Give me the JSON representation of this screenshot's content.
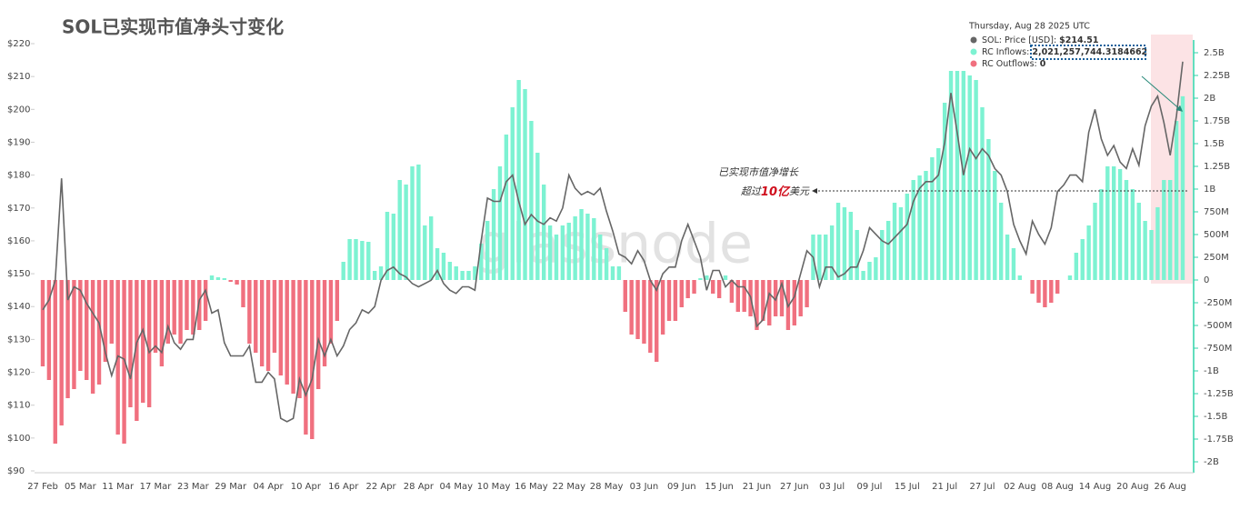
{
  "chart_data": {
    "type": "bar-line",
    "title": "SOL已实现市值净头寸变化",
    "watermark": "glassnode",
    "categories": [
      "27 Feb",
      null,
      null,
      null,
      null,
      null,
      "05 Mar",
      null,
      null,
      null,
      null,
      null,
      "11 Mar",
      null,
      null,
      null,
      null,
      null,
      "17 Mar",
      null,
      null,
      null,
      null,
      null,
      "23 Mar",
      null,
      null,
      null,
      null,
      null,
      "29 Mar",
      null,
      null,
      null,
      null,
      null,
      "04 Apr",
      null,
      null,
      null,
      null,
      null,
      "10 Apr",
      null,
      null,
      null,
      null,
      null,
      "16 Apr",
      null,
      null,
      null,
      null,
      null,
      "22 Apr",
      null,
      null,
      null,
      null,
      null,
      "28 Apr",
      null,
      null,
      null,
      null,
      null,
      "04 May",
      null,
      null,
      null,
      null,
      null,
      "10 May",
      null,
      null,
      null,
      null,
      null,
      "16 May",
      null,
      null,
      null,
      null,
      null,
      "22 May",
      null,
      null,
      null,
      null,
      null,
      "28 May",
      null,
      null,
      null,
      null,
      null,
      "03 Jun",
      null,
      null,
      null,
      null,
      null,
      "09 Jun",
      null,
      null,
      null,
      null,
      null,
      "15 Jun",
      null,
      null,
      null,
      null,
      null,
      "21 Jun",
      null,
      null,
      null,
      null,
      null,
      "27 Jun",
      null,
      null,
      null,
      null,
      null,
      "03 Jul",
      null,
      null,
      null,
      null,
      null,
      "09 Jul",
      null,
      null,
      null,
      null,
      null,
      "15 Jul",
      null,
      null,
      null,
      null,
      null,
      "21 Jul",
      null,
      null,
      null,
      null,
      null,
      "27 Jul",
      null,
      null,
      null,
      null,
      null,
      "02 Aug",
      null,
      null,
      null,
      null,
      null,
      "08 Aug",
      null,
      null,
      null,
      null,
      null,
      "14 Aug",
      null,
      null,
      null,
      null,
      null,
      "20 Aug",
      null,
      null,
      null,
      null,
      null,
      "26 Aug",
      null,
      null
    ],
    "series": [
      {
        "name": "SOL: Price [USD]",
        "type": "line",
        "color": "#666666",
        "values": [
          139,
          142,
          148,
          179,
          142,
          146,
          145,
          141,
          138,
          135,
          126,
          119,
          125,
          124,
          118,
          129,
          133,
          126,
          128,
          126,
          134,
          129,
          127,
          130,
          130,
          142,
          145,
          138,
          139,
          129,
          125,
          125,
          125,
          128,
          117,
          117,
          120,
          118,
          106,
          105,
          106,
          118,
          113,
          118,
          130,
          125,
          130,
          125,
          128,
          133,
          135,
          139,
          138,
          140,
          148,
          151,
          152,
          150,
          149,
          147,
          146,
          147,
          148,
          151,
          147,
          145,
          144,
          146,
          146,
          145,
          160,
          173,
          172,
          172,
          178,
          180,
          172,
          165,
          168,
          166,
          165,
          167,
          166,
          170,
          180,
          176,
          174,
          175,
          174,
          176,
          169,
          163,
          156,
          155,
          153,
          157,
          154,
          148,
          145,
          150,
          152,
          152,
          160,
          165,
          160,
          155,
          145,
          151,
          151,
          146,
          148,
          146,
          146,
          143,
          134,
          136,
          144,
          142,
          147,
          140,
          143,
          150,
          157,
          155,
          146,
          152,
          152,
          149,
          150,
          152,
          152,
          157,
          164,
          162,
          160,
          159,
          161,
          163,
          165,
          172,
          176,
          178,
          178,
          180,
          190,
          205,
          193,
          180,
          188,
          185,
          188,
          186,
          182,
          180,
          175,
          165,
          160,
          156,
          166,
          162,
          159,
          164,
          175,
          177,
          180,
          180,
          178,
          193,
          200,
          191,
          186,
          189,
          184,
          182,
          188,
          183,
          195,
          201,
          204,
          196,
          186,
          198,
          214.51
        ]
      },
      {
        "name": "RC Inflows",
        "type": "bar",
        "axis": "y2",
        "color": "#7df2d2",
        "values": [
          0,
          0,
          0,
          0,
          0,
          0,
          0,
          0,
          0,
          0,
          0,
          0,
          0,
          0,
          0,
          0,
          0,
          0,
          0,
          0,
          0,
          0,
          0,
          0,
          0,
          0,
          0,
          0.05,
          0.03,
          0.02,
          0,
          0,
          0,
          0,
          0,
          0,
          0,
          0,
          0,
          0,
          0,
          0,
          0,
          0,
          0,
          0,
          0,
          0,
          0.2,
          0.45,
          0.45,
          0.43,
          0.42,
          0.1,
          0.15,
          0.75,
          0.73,
          1.1,
          1.05,
          1.25,
          1.27,
          0.6,
          0.7,
          0.35,
          0.3,
          0.2,
          0.15,
          0.1,
          0.1,
          0.15,
          0.4,
          0.65,
          1.0,
          1.25,
          1.6,
          1.9,
          2.2,
          2.1,
          1.75,
          1.4,
          1.05,
          0.6,
          0.5,
          0.6,
          0.63,
          0.7,
          0.78,
          0.73,
          0.68,
          0.5,
          0.35,
          0.15,
          0.15,
          0,
          0,
          0,
          0,
          0,
          0,
          0,
          0,
          0,
          0,
          0,
          0,
          0.02,
          0.05,
          0,
          0,
          0.05,
          0,
          0,
          0,
          0,
          0,
          0,
          0,
          0,
          0,
          0,
          0,
          0,
          0,
          0.5,
          0.5,
          0.5,
          0.6,
          0.85,
          0.8,
          0.75,
          0.55,
          0.1,
          0.2,
          0.25,
          0.55,
          0.65,
          0.85,
          0.8,
          0.95,
          1.1,
          1.15,
          1.2,
          1.35,
          1.45,
          1.95,
          2.3,
          2.3,
          2.3,
          2.25,
          2.2,
          1.9,
          1.55,
          1.2,
          0.85,
          0.5,
          0.35,
          0.05,
          0,
          0,
          0,
          0,
          0,
          0,
          0,
          0.05,
          0.3,
          0.45,
          0.6,
          0.85,
          1.0,
          1.25,
          1.25,
          1.22,
          1.1,
          1.0,
          0.85,
          0.65,
          0.55,
          0.8,
          1.1,
          1.1,
          1.75,
          2.0212577443184663
        ]
      },
      {
        "name": "RC Outflows",
        "type": "bar",
        "axis": "y2",
        "color": "#f0707f",
        "values": [
          -0.95,
          -1.1,
          -1.8,
          -1.6,
          -1.3,
          -1.2,
          -1.0,
          -1.1,
          -1.25,
          -1.15,
          -0.9,
          -0.7,
          -1.7,
          -1.8,
          -1.4,
          -1.55,
          -1.35,
          -1.4,
          -0.8,
          -0.95,
          -0.7,
          -0.6,
          -0.7,
          -0.55,
          -0.6,
          -0.55,
          -0.45,
          0,
          0,
          0,
          -0.02,
          -0.05,
          -0.3,
          -0.7,
          -0.8,
          -0.95,
          -1.0,
          -0.8,
          -1.05,
          -1.15,
          -1.25,
          -1.3,
          -1.7,
          -1.75,
          -1.2,
          -0.95,
          -0.7,
          -0.45,
          0,
          0,
          0,
          0,
          0,
          0,
          0,
          0,
          0,
          0,
          0,
          0,
          0,
          0,
          0,
          0,
          0,
          0,
          0,
          0,
          0,
          0,
          0,
          0,
          0,
          0,
          0,
          0,
          0,
          0,
          0,
          0,
          0,
          0,
          0,
          0,
          0,
          0,
          0,
          0,
          0,
          0,
          0,
          0,
          0,
          -0.35,
          -0.6,
          -0.65,
          -0.7,
          -0.8,
          -0.9,
          -0.6,
          -0.45,
          -0.45,
          -0.3,
          -0.2,
          -0.15,
          0,
          0,
          -0.15,
          -0.2,
          0,
          -0.25,
          -0.35,
          -0.35,
          -0.4,
          -0.55,
          -0.45,
          -0.5,
          -0.4,
          -0.4,
          -0.55,
          -0.5,
          -0.4,
          -0.3,
          0,
          0,
          0,
          0,
          0,
          0,
          0,
          0,
          0,
          0,
          0,
          0,
          0,
          0,
          0,
          0,
          0,
          0,
          0,
          0,
          0,
          0,
          0,
          0,
          0,
          0,
          0,
          0,
          0,
          0,
          0,
          0,
          0,
          0,
          0,
          -0.15,
          -0.25,
          -0.3,
          -0.25,
          -0.15,
          0,
          0,
          0,
          0,
          0,
          0,
          0,
          0,
          0,
          0,
          0,
          0,
          0,
          0,
          0,
          0,
          0,
          0,
          0,
          0
        ]
      }
    ],
    "ylim": [
      90,
      220
    ],
    "yticks": [
      {
        "value": 90,
        "label": "$90"
      },
      {
        "value": 100,
        "label": "$100"
      },
      {
        "value": 110,
        "label": "$110"
      },
      {
        "value": 120,
        "label": "$120"
      },
      {
        "value": 130,
        "label": "$130"
      },
      {
        "value": 140,
        "label": "$140"
      },
      {
        "value": 150,
        "label": "$150"
      },
      {
        "value": 160,
        "label": "$160"
      },
      {
        "value": 170,
        "label": "$170"
      },
      {
        "value": 180,
        "label": "$180"
      },
      {
        "value": 190,
        "label": "$190"
      },
      {
        "value": 200,
        "label": "$200"
      },
      {
        "value": 210,
        "label": "$210"
      },
      {
        "value": 220,
        "label": "$220"
      }
    ],
    "y2lim": [
      -2,
      2.5
    ],
    "y2ticks": [
      {
        "value": 2.5,
        "label": "2.5B"
      },
      {
        "value": 2.25,
        "label": "2.25B"
      },
      {
        "value": 2,
        "label": "2B"
      },
      {
        "value": 1.75,
        "label": "1.75B"
      },
      {
        "value": 1.5,
        "label": "1.5B"
      },
      {
        "value": 1.25,
        "label": "1.25B"
      },
      {
        "value": 1,
        "label": "1B"
      },
      {
        "value": 0.75,
        "label": "750M"
      },
      {
        "value": 0.5,
        "label": "500M"
      },
      {
        "value": 0.25,
        "label": "250M"
      },
      0,
      {
        "value": -0.25,
        "label": "-250M"
      },
      {
        "value": -0.5,
        "label": "-500M"
      },
      {
        "value": -0.75,
        "label": "-750M"
      },
      {
        "value": -1,
        "label": "-1B"
      },
      {
        "value": -1.25,
        "label": "-1.25B"
      },
      {
        "value": -1.5,
        "label": "-1.5B"
      },
      {
        "value": -1.75,
        "label": "-1.75B"
      },
      {
        "value": -2,
        "label": "-2B"
      }
    ],
    "grid": false,
    "tooltip": {
      "date": "Thursday, Aug 28 2025 UTC",
      "separator": ": ",
      "value_labels": [
        "$214.51",
        "2,021,257,744.3184662",
        "0"
      ]
    },
    "annotation": {
      "line1": "已实现市值净增长",
      "prefix": "超过",
      "highlight": "10亿",
      "suffix": "美元"
    }
  }
}
